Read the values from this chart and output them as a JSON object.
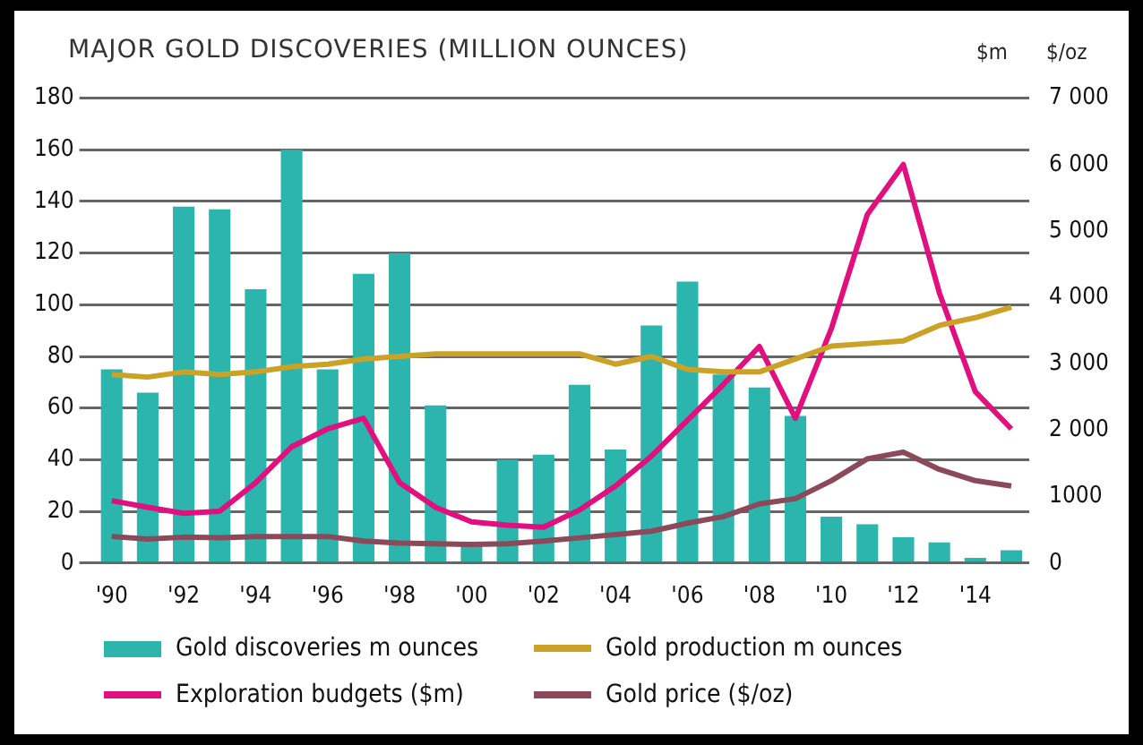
{
  "chart_data": {
    "type": "bar",
    "title": "MAJOR GOLD DISCOVERIES (MILLION OUNCES)",
    "y2label": "$m",
    "annotations": [
      "$/oz"
    ],
    "categories": [
      "'90",
      null,
      "'92",
      null,
      "'94",
      null,
      "'96",
      null,
      "'98",
      null,
      "'00",
      null,
      "'02",
      null,
      "'04",
      null,
      "'06",
      null,
      "'08",
      null,
      "'10",
      null,
      "'12",
      null,
      "'14",
      null
    ],
    "series": [
      {
        "name": "Gold discoveries m ounces",
        "color": "#2bb5ad",
        "values": [
          75,
          66,
          138,
          137,
          106,
          160,
          75,
          112,
          120,
          61,
          7,
          40,
          42,
          69,
          44,
          92,
          109,
          73,
          68,
          57,
          18,
          15,
          10,
          8,
          2,
          5
        ]
      },
      {
        "name": "Gold production m ounces",
        "type": "line",
        "color": "#c9a227",
        "values": [
          73,
          72,
          74,
          73,
          74,
          76,
          77,
          79,
          80,
          81,
          81,
          81,
          81,
          81,
          77,
          80,
          75,
          74,
          74,
          79,
          84,
          85,
          86,
          92,
          95,
          99
        ]
      },
      {
        "name": "Exploration budgets ($m)",
        "type": "line",
        "axis": "y2",
        "color": "#e0117f",
        "values": [
          940,
          840,
          750,
          780,
          1210,
          1750,
          2020,
          2180,
          1210,
          840,
          620,
          570,
          540,
          800,
          1160,
          1610,
          2150,
          2690,
          3260,
          2180,
          3530,
          5250,
          6000,
          4070,
          2580,
          2020
        ]
      },
      {
        "name": "Gold price ($/oz)",
        "type": "line",
        "axis": "y2",
        "color": "#8b4a5a",
        "values": [
          400,
          360,
          390,
          380,
          400,
          400,
          400,
          330,
          300,
          290,
          280,
          290,
          330,
          380,
          430,
          480,
          600,
          700,
          890,
          970,
          1240,
          1570,
          1670,
          1410,
          1240,
          1160
        ]
      }
    ],
    "ylim": [
      0,
      180
    ],
    "yticks": [
      0,
      20,
      40,
      60,
      80,
      100,
      120,
      140,
      160,
      180
    ],
    "y2lim": [
      0,
      7000
    ],
    "y2ticks": [
      {
        "value": 0,
        "label": "0"
      },
      {
        "value": 1000,
        "label": "1000"
      },
      {
        "value": 2000,
        "label": "2 000"
      },
      {
        "value": 3000,
        "label": "3 000"
      },
      {
        "value": 4000,
        "label": "4 000"
      },
      {
        "value": 5000,
        "label": "5 000"
      },
      {
        "value": 6000,
        "label": "6 000"
      },
      {
        "value": 7000,
        "label": "7 000"
      }
    ],
    "grid": "y",
    "legend": "bottom"
  }
}
